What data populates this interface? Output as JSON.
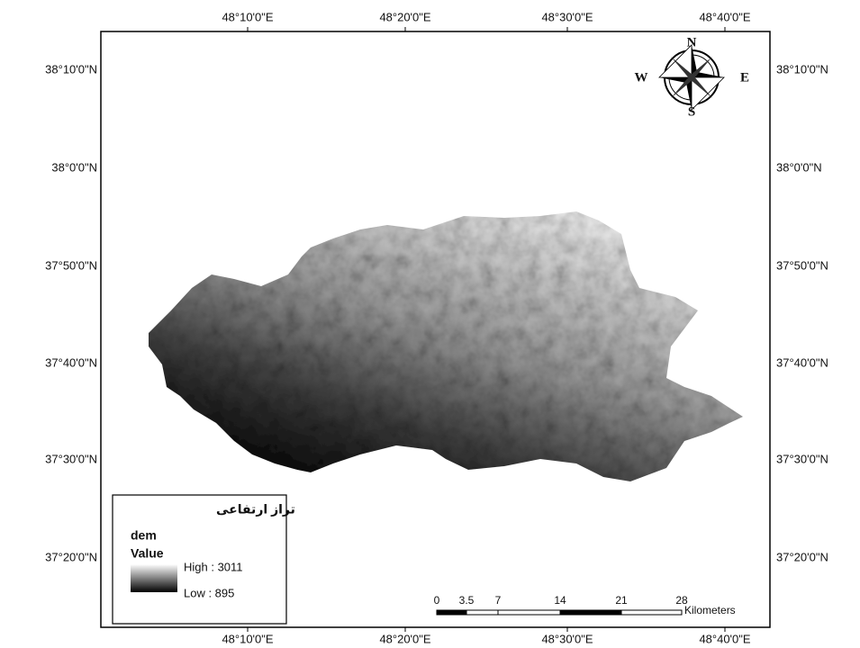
{
  "graticule": {
    "top": [
      "48°10'0\"E",
      "48°20'0\"E",
      "48°30'0\"E",
      "48°40'0\"E"
    ],
    "bottom": [
      "48°10'0\"E",
      "48°20'0\"E",
      "48°30'0\"E",
      "48°40'0\"E"
    ],
    "left": [
      "38°10'0\"N",
      "38°0'0\"N",
      "37°50'0\"N",
      "37°40'0\"N",
      "37°30'0\"N",
      "37°20'0\"N"
    ],
    "right": [
      "38°10'0\"N",
      "38°0'0\"N",
      "37°50'0\"N",
      "37°40'0\"N",
      "37°30'0\"N",
      "37°20'0\"N"
    ]
  },
  "north_arrow": {
    "n": "N",
    "s": "S",
    "e": "E",
    "w": "W"
  },
  "legend": {
    "title": "تراز ارتفاعی",
    "layer": "dem",
    "field": "Value",
    "high": "High : 3011",
    "low": "Low : 895"
  },
  "scale_bar": {
    "ticks": [
      "0",
      "3.5",
      "7",
      "14",
      "21",
      "28"
    ],
    "unit": "Kilometers"
  }
}
